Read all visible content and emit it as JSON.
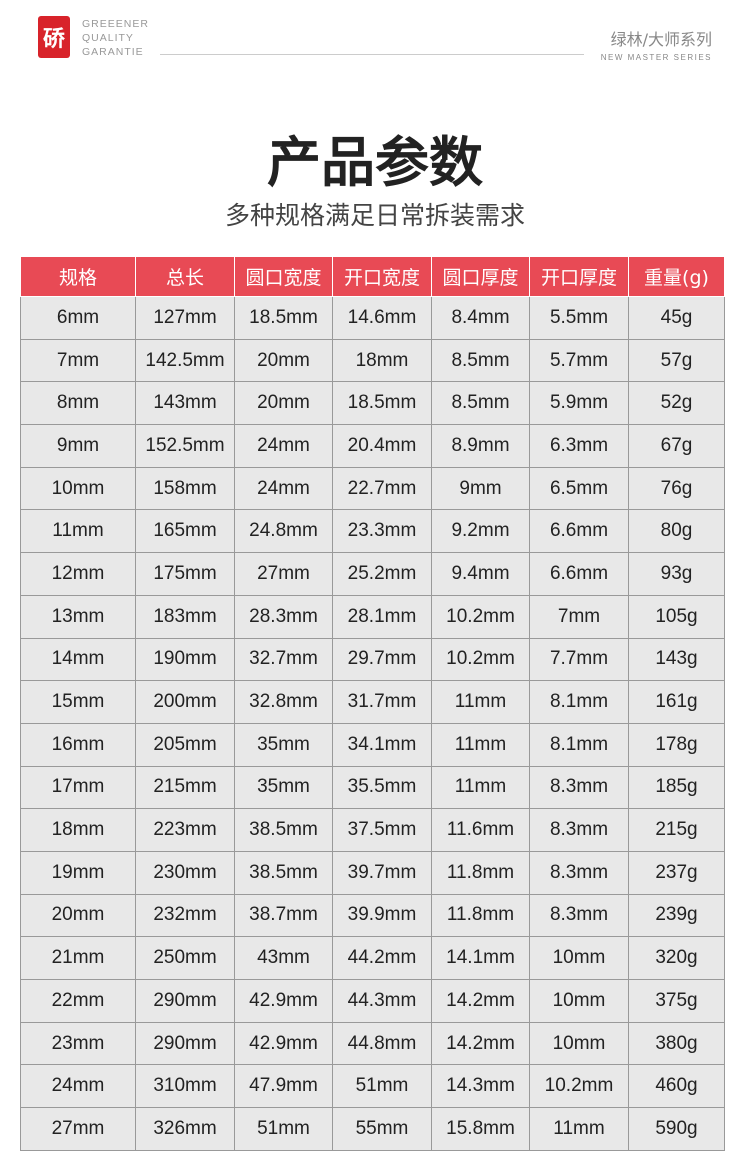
{
  "header": {
    "brand_lines": [
      "GREEENER",
      "QUALITY",
      "GARANTIE"
    ],
    "logo_char": "硚",
    "series_cn": "绿林/大师系列",
    "series_en": "NEW  MASTER  SERIES"
  },
  "title": "产品参数",
  "subtitle": "多种规格满足日常拆装需求",
  "colors": {
    "header_bg": "#e84a55",
    "row_bg": "#e8e8e8"
  },
  "table": {
    "columns": [
      "规格",
      "总长",
      "圆口宽度",
      "开口宽度",
      "圆口厚度",
      "开口厚度",
      "重量(g)"
    ],
    "rows": [
      [
        "6mm",
        "127mm",
        "18.5mm",
        "14.6mm",
        "8.4mm",
        "5.5mm",
        "45g"
      ],
      [
        "7mm",
        "142.5mm",
        "20mm",
        "18mm",
        "8.5mm",
        "5.7mm",
        "57g"
      ],
      [
        "8mm",
        "143mm",
        "20mm",
        "18.5mm",
        "8.5mm",
        "5.9mm",
        "52g"
      ],
      [
        "9mm",
        "152.5mm",
        "24mm",
        "20.4mm",
        "8.9mm",
        "6.3mm",
        "67g"
      ],
      [
        "10mm",
        "158mm",
        "24mm",
        "22.7mm",
        "9mm",
        "6.5mm",
        "76g"
      ],
      [
        "11mm",
        "165mm",
        "24.8mm",
        "23.3mm",
        "9.2mm",
        "6.6mm",
        "80g"
      ],
      [
        "12mm",
        "175mm",
        "27mm",
        "25.2mm",
        "9.4mm",
        "6.6mm",
        "93g"
      ],
      [
        "13mm",
        "183mm",
        "28.3mm",
        "28.1mm",
        "10.2mm",
        "7mm",
        "105g"
      ],
      [
        "14mm",
        "190mm",
        "32.7mm",
        "29.7mm",
        "10.2mm",
        "7.7mm",
        "143g"
      ],
      [
        "15mm",
        "200mm",
        "32.8mm",
        "31.7mm",
        "11mm",
        "8.1mm",
        "161g"
      ],
      [
        "16mm",
        "205mm",
        "35mm",
        "34.1mm",
        "11mm",
        "8.1mm",
        "178g"
      ],
      [
        "17mm",
        "215mm",
        "35mm",
        "35.5mm",
        "11mm",
        "8.3mm",
        "185g"
      ],
      [
        "18mm",
        "223mm",
        "38.5mm",
        "37.5mm",
        "11.6mm",
        "8.3mm",
        "215g"
      ],
      [
        "19mm",
        "230mm",
        "38.5mm",
        "39.7mm",
        "11.8mm",
        "8.3mm",
        "237g"
      ],
      [
        "20mm",
        "232mm",
        "38.7mm",
        "39.9mm",
        "11.8mm",
        "8.3mm",
        "239g"
      ],
      [
        "21mm",
        "250mm",
        "43mm",
        "44.2mm",
        "14.1mm",
        "10mm",
        "320g"
      ],
      [
        "22mm",
        "290mm",
        "42.9mm",
        "44.3mm",
        "14.2mm",
        "10mm",
        "375g"
      ],
      [
        "23mm",
        "290mm",
        "42.9mm",
        "44.8mm",
        "14.2mm",
        "10mm",
        "380g"
      ],
      [
        "24mm",
        "310mm",
        "47.9mm",
        "51mm",
        "14.3mm",
        "10.2mm",
        "460g"
      ],
      [
        "27mm",
        "326mm",
        "51mm",
        "55mm",
        "15.8mm",
        "11mm",
        "590g"
      ]
    ]
  }
}
